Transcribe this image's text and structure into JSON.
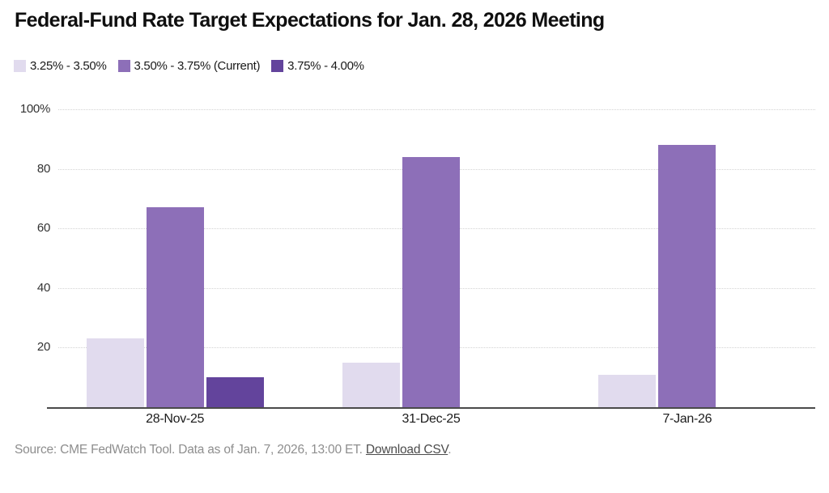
{
  "title": "Federal-Fund Rate Target Expectations for Jan. 28, 2026 Meeting",
  "source_note": {
    "prefix": "Source: CME FedWatch Tool. Data as of Jan. 7, 2026, 13:00 ET. ",
    "link_label": "Download CSV",
    "suffix": "."
  },
  "chart_data": {
    "type": "bar",
    "title": "Federal-Fund Rate Target Expectations for Jan. 28, 2026 Meeting",
    "categories": [
      "28-Nov-25",
      "31-Dec-25",
      "7-Jan-26"
    ],
    "series": [
      {
        "name": "3.25% - 3.50%",
        "color": "#e1dbee",
        "values": [
          23,
          15,
          11
        ]
      },
      {
        "name": "3.50% - 3.75% (Current)",
        "color": "#8d6fb8",
        "values": [
          67,
          84,
          88
        ]
      },
      {
        "name": "3.75% - 4.00%",
        "color": "#63449c",
        "values": [
          10,
          0,
          0
        ]
      }
    ],
    "xlabel": "",
    "ylabel": "",
    "ylim": [
      0,
      100
    ],
    "yticks": [
      {
        "value": 100,
        "label": "100%"
      },
      {
        "value": 80,
        "label": "80"
      },
      {
        "value": 60,
        "label": "60"
      },
      {
        "value": 40,
        "label": "40"
      },
      {
        "value": 20,
        "label": "20"
      }
    ],
    "grid": "horizontal-dotted",
    "legend_position": "top-left",
    "axis_line_color": "#4a4a4a",
    "gridline_color": "#d3d3d3"
  }
}
